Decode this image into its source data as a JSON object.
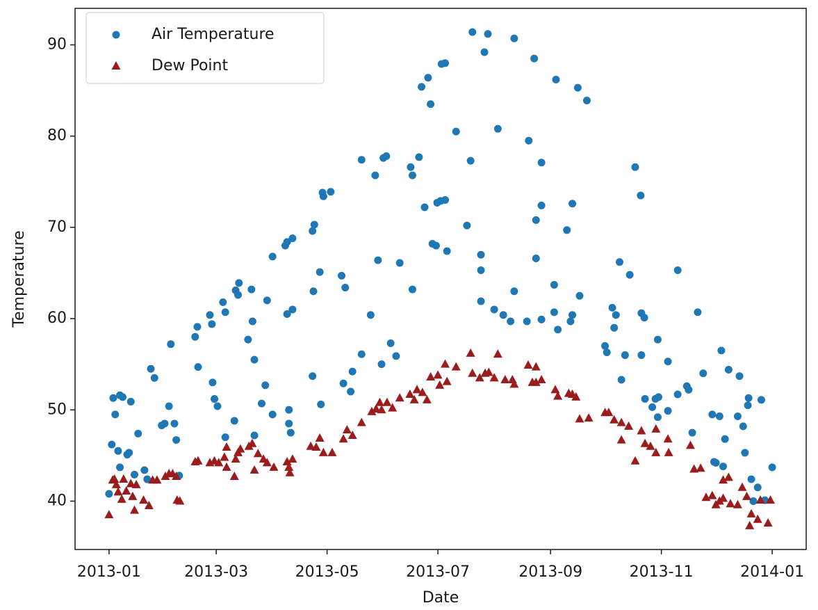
{
  "chart_data": {
    "type": "scatter",
    "xlabel": "Date",
    "ylabel": "Temperature",
    "xlim": [
      -18.7,
      383.7
    ],
    "ylim": [
      34.7,
      94
    ],
    "xticks": [
      {
        "value": 0,
        "label": "2013-01"
      },
      {
        "value": 59,
        "label": "2013-03"
      },
      {
        "value": 120,
        "label": "2013-05"
      },
      {
        "value": 181,
        "label": "2013-07"
      },
      {
        "value": 243,
        "label": "2013-09"
      },
      {
        "value": 304,
        "label": "2013-11"
      },
      {
        "value": 365,
        "label": "2014-01"
      }
    ],
    "yticks": [
      40,
      50,
      60,
      70,
      80,
      90
    ],
    "legend": "upper left",
    "series": [
      {
        "name": "Air Temperature",
        "color": "#1f77b4",
        "marker": "circle",
        "x": [
          0,
          1.5,
          2.3,
          3.4,
          5,
          6,
          7.5,
          6,
          10,
          11,
          12,
          14,
          16,
          19.5,
          21,
          23,
          25,
          29,
          30.6,
          33,
          34,
          36,
          37,
          38.6,
          47.4,
          48.6,
          49,
          55.5,
          56.6,
          57,
          58,
          59.7,
          62.7,
          64,
          64,
          69,
          69.7,
          71,
          71.5,
          76.5,
          78.4,
          79,
          80,
          80,
          84,
          86,
          87,
          90,
          90,
          97,
          98,
          98,
          99,
          99,
          100,
          101,
          101,
          112,
          113,
          112.5,
          112,
          116,
          116.6,
          117.5,
          118,
          122,
          128,
          129,
          130,
          133,
          134,
          139,
          139,
          144,
          146.5,
          148,
          150,
          151,
          152.6,
          155,
          158,
          160,
          166,
          167,
          167,
          170.6,
          172,
          173.7,
          175.6,
          177,
          178,
          180,
          180.6,
          183,
          185,
          182.5,
          185,
          186,
          191,
          197,
          199,
          200,
          204.7,
          204.7,
          204.7,
          206.6,
          208.5,
          212,
          214,
          217,
          221,
          223,
          223,
          230,
          231,
          234,
          235,
          235,
          238,
          238,
          238,
          245,
          245,
          246,
          247,
          252,
          254,
          255,
          255,
          258,
          259,
          263,
          273,
          274,
          277,
          278,
          279,
          281,
          282,
          284,
          286.6,
          289.6,
          292.6,
          293,
          293,
          294.6,
          295,
          299,
          300.7,
          302,
          302.4,
          302,
          307.6,
          307.6,
          313,
          313,
          318,
          319,
          321,
          324,
          327,
          332,
          333,
          334,
          336,
          337,
          338,
          339,
          341,
          346,
          347,
          349,
          350,
          351.6,
          352,
          353.5,
          354.6,
          357,
          359,
          361,
          365
        ],
        "values": [
          40.8,
          46.2,
          51.3,
          49.5,
          45.5,
          51.6,
          51.4,
          43.7,
          45.1,
          45.3,
          50.9,
          42.9,
          47.4,
          43.4,
          42.4,
          54.5,
          53.5,
          48.3,
          48.5,
          50.4,
          57.2,
          48.5,
          46.7,
          42.8,
          58,
          59.1,
          54.7,
          60.4,
          59.4,
          53,
          51.2,
          50.4,
          61.8,
          60.7,
          47,
          48.8,
          63.1,
          62.6,
          63.9,
          57.7,
          63.2,
          59.7,
          55.5,
          47.2,
          50.7,
          52.7,
          62,
          66.8,
          49.5,
          68,
          68.4,
          60.5,
          50,
          48.5,
          47.5,
          68.8,
          61,
          69.6,
          70.3,
          63,
          53.7,
          65.1,
          50.6,
          73.8,
          73.4,
          73.9,
          64.7,
          52.9,
          63.4,
          52,
          54.2,
          56.1,
          77.4,
          60.4,
          75.7,
          66.4,
          55,
          77.6,
          77.8,
          57.3,
          55.9,
          66.1,
          76.6,
          75.7,
          63.2,
          77.7,
          85.4,
          72.2,
          86.4,
          83.5,
          68.2,
          68,
          72.7,
          87.9,
          88,
          72.9,
          73,
          67.4,
          80.5,
          70.2,
          77.3,
          91.4,
          61.9,
          65.3,
          67,
          89.2,
          91.2,
          61,
          80.8,
          60.4,
          59.7,
          90.7,
          63,
          59.7,
          79.5,
          88.5,
          70.8,
          66.6,
          77.1,
          72.4,
          59.9,
          63.7,
          60.7,
          86.2,
          58.8,
          69.7,
          59.7,
          60.4,
          72.6,
          85.3,
          62.5,
          83.9,
          57,
          56.3,
          61.2,
          59,
          60.4,
          66.2,
          53.3,
          56,
          64.8,
          76.6,
          73.5,
          56,
          60.6,
          60.1,
          51.2,
          50.3,
          51.2,
          49.2,
          51.4,
          57.7,
          55.3,
          49.9,
          65.3,
          51.7,
          52.6,
          52.2,
          47.5,
          60.7,
          54,
          49.5,
          44.3,
          44.2,
          49.3,
          56.5,
          43.8,
          46.8,
          54.4,
          49.3,
          53.7,
          48.2,
          45.3,
          50.5,
          51.3,
          42.4,
          40,
          41.5,
          51.1,
          40.1,
          43.7
        ]
      },
      {
        "name": "Dew Point",
        "color": "#9b1c1c",
        "marker": "triangle",
        "x": [
          0,
          2,
          3,
          4,
          5,
          7,
          8,
          9.5,
          12,
          13,
          14,
          15,
          19,
          22,
          24,
          26.4,
          31,
          33,
          35,
          37,
          37.5,
          39,
          47.4,
          49,
          55.5,
          58,
          60.4,
          63.5,
          64.7,
          64.7,
          69,
          69.7,
          71,
          72.3,
          77,
          78.8,
          80,
          82,
          85,
          87,
          90.7,
          98,
          99,
          99.5,
          101,
          111,
          114,
          116,
          118,
          122.8,
          129,
          131,
          134,
          139,
          144.6,
          147,
          149,
          150,
          153,
          156,
          160,
          165.6,
          168,
          169.5,
          172.5,
          175,
          177,
          181,
          182,
          185,
          186,
          191,
          199,
          200,
          204,
          207,
          209,
          214,
          212,
          218,
          222,
          223,
          230.7,
          233,
          235,
          235,
          238,
          245.6,
          247,
          253,
          255,
          257,
          259,
          264,
          273,
          275,
          278,
          282,
          282,
          286,
          289.6,
          293,
          295,
          298,
          301,
          301,
          307.6,
          308,
          320,
          322,
          325.6,
          328.6,
          332,
          334,
          336,
          338,
          338,
          341,
          342,
          346,
          348.5,
          351,
          352.6,
          353.5,
          357,
          358.5,
          362.7,
          364
        ],
        "values": [
          38.5,
          42.3,
          42.4,
          41.8,
          41,
          40.2,
          42.4,
          41.1,
          41.9,
          40.5,
          39,
          41.8,
          40.1,
          39.5,
          42.3,
          42.3,
          42.7,
          43,
          43,
          42.7,
          40.1,
          40,
          44.3,
          44.4,
          44.2,
          44.4,
          44.2,
          44.8,
          45.9,
          43.7,
          42.7,
          44.6,
          45.3,
          45.7,
          46,
          46.3,
          43.4,
          45.2,
          44.6,
          44.2,
          43.7,
          44.3,
          43.7,
          43.1,
          44.6,
          46,
          45.9,
          46.9,
          45.3,
          45.3,
          46.8,
          47.8,
          47.2,
          48.6,
          49.8,
          50.1,
          50.8,
          50,
          50.8,
          50.2,
          51.3,
          51.7,
          51.1,
          52.2,
          51.9,
          51.1,
          53.6,
          53.8,
          52.7,
          55,
          53.1,
          54.7,
          56.2,
          54,
          53.5,
          54,
          54.1,
          56.1,
          53.5,
          53.3,
          53.3,
          52.8,
          54.9,
          53,
          54.7,
          53,
          53.3,
          52.2,
          51.5,
          51.8,
          51.7,
          51.4,
          49,
          49.1,
          49.7,
          49.7,
          48.9,
          48.6,
          46.7,
          48.2,
          44.4,
          47.7,
          46.3,
          46,
          47.9,
          45.3,
          46.8,
          45.3,
          46.1,
          43.5,
          43.6,
          40.4,
          40.6,
          39.6,
          40,
          40.3,
          42.3,
          42.6,
          39.7,
          39.6,
          41.5,
          40.5,
          37.3,
          38.6,
          38,
          40.1,
          37.6,
          40.1
        ]
      }
    ]
  }
}
